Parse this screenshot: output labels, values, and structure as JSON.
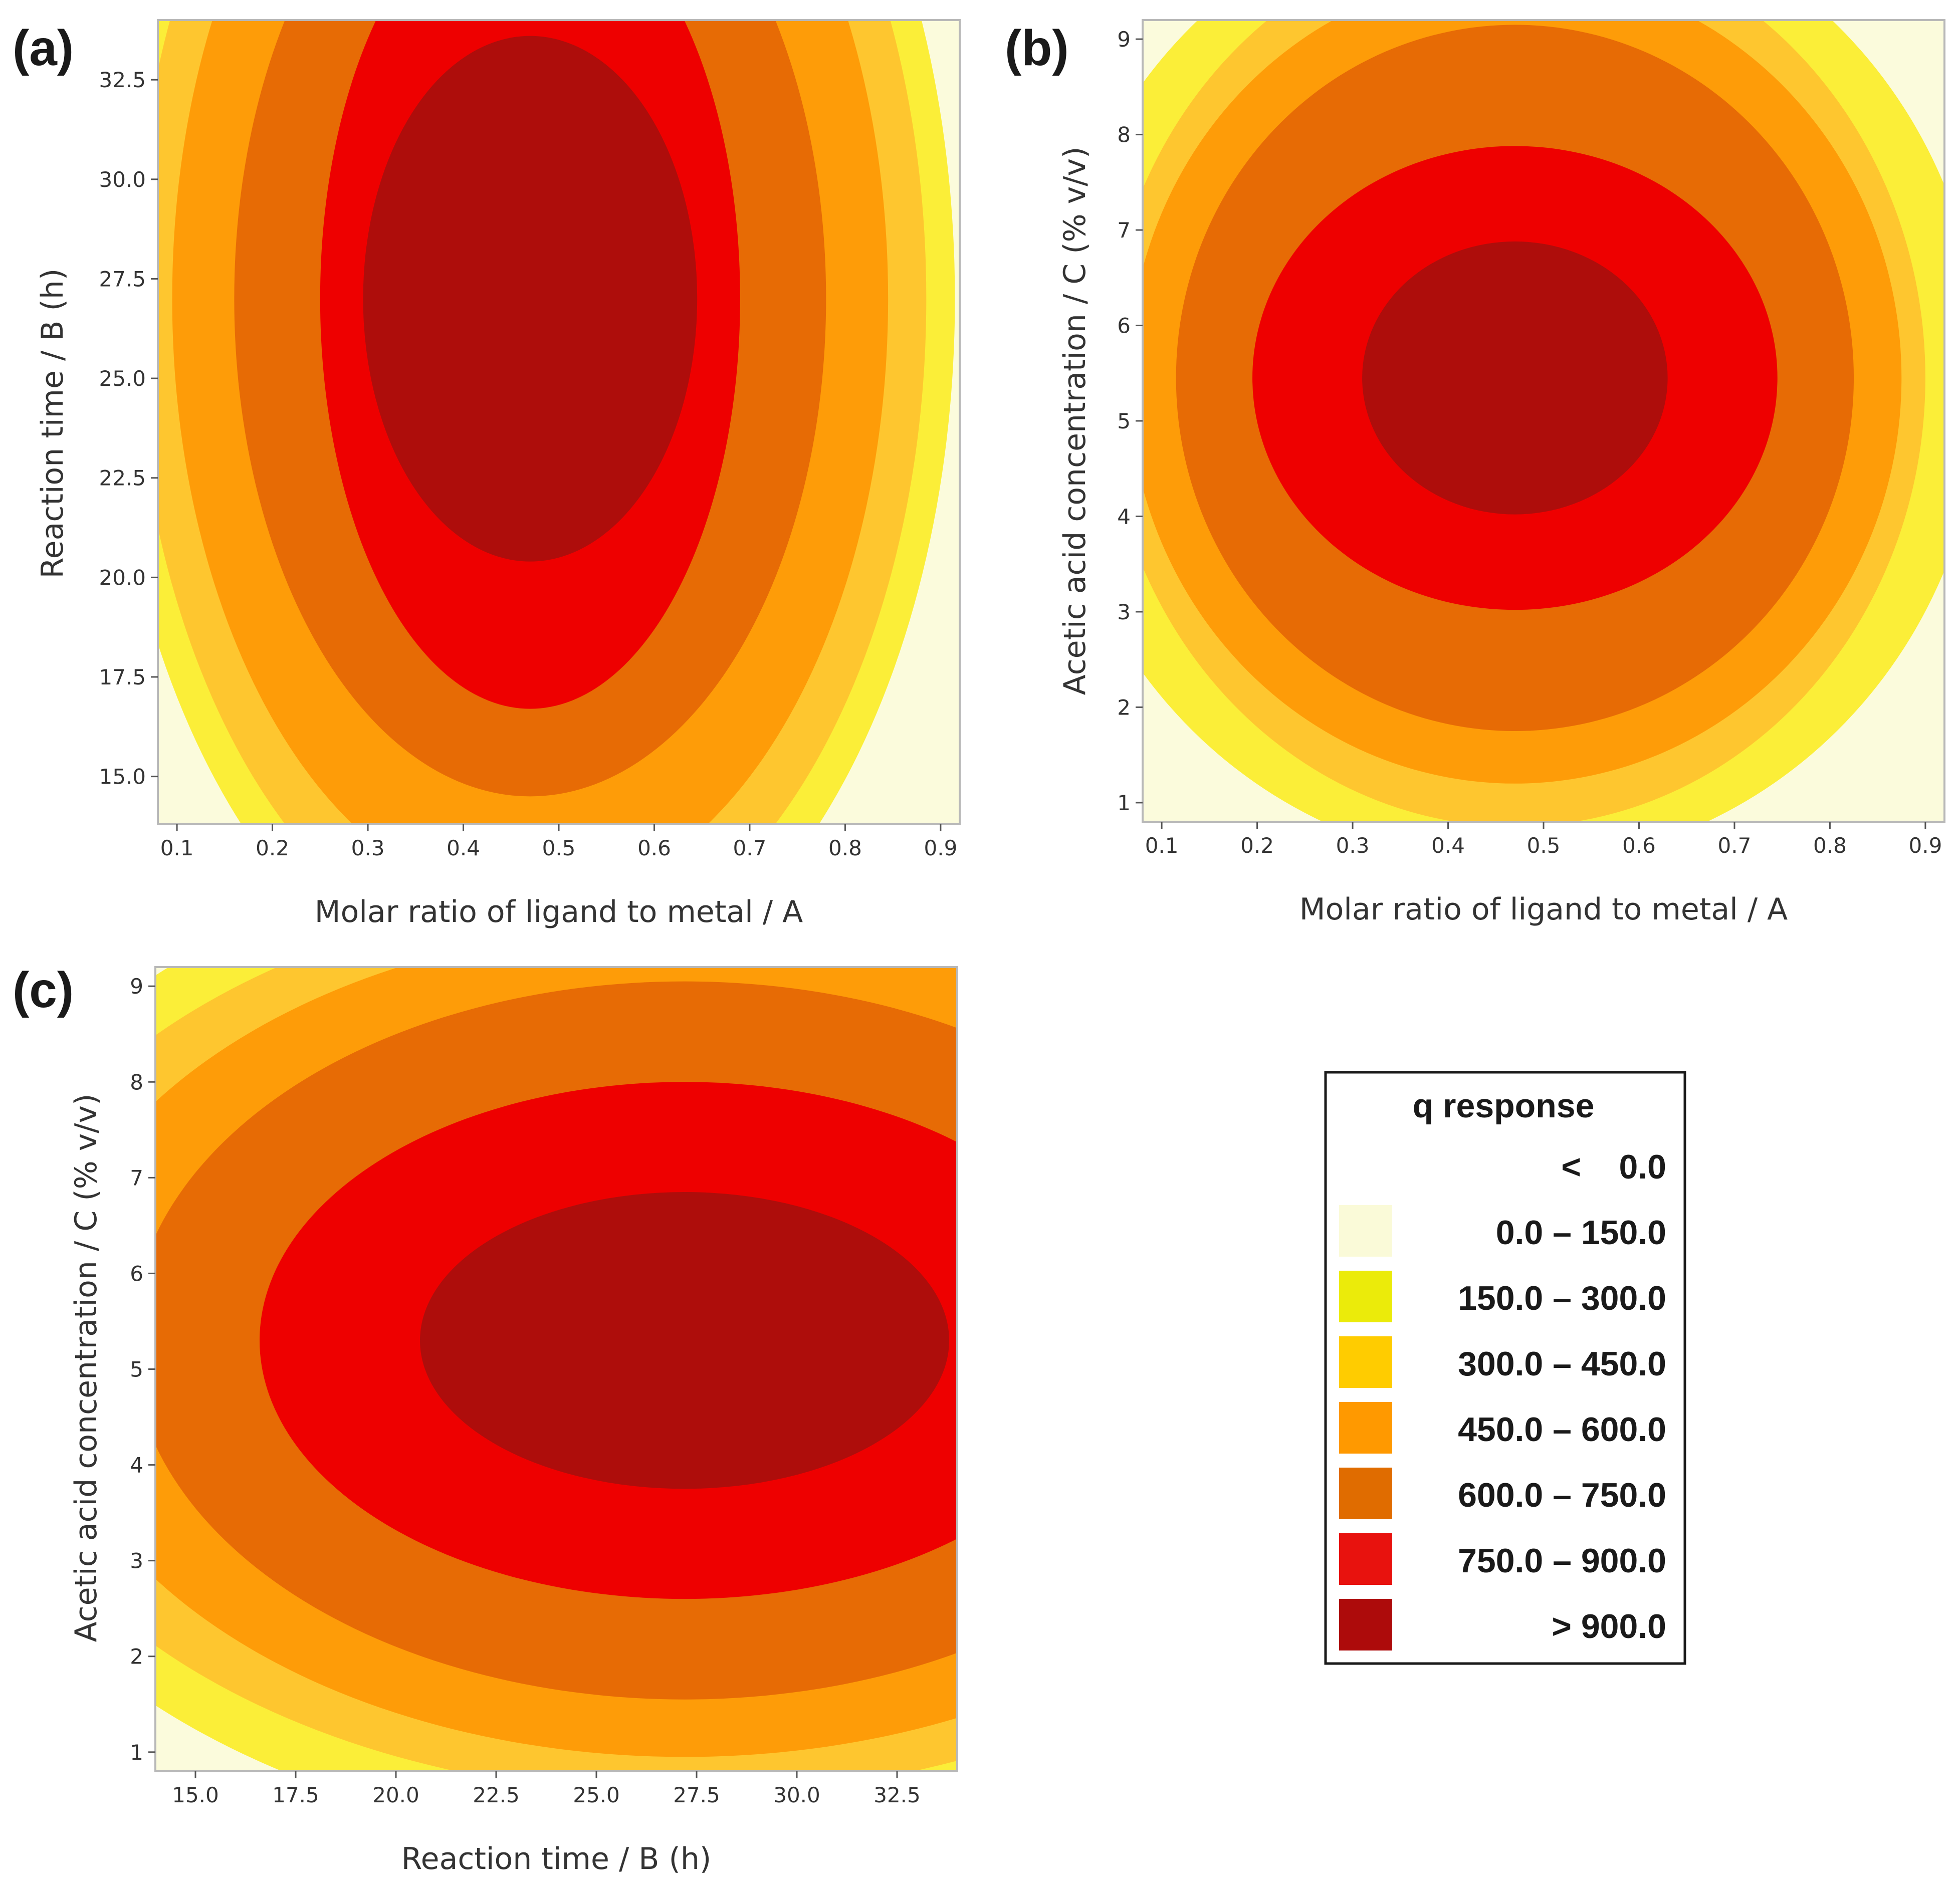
{
  "chart_data": [
    {
      "type": "contour",
      "panel_label": "(a)",
      "xlabel": "Molar ratio of ligand to metal / A",
      "ylabel": "Reaction time / B (h)",
      "xlim": [
        0.08,
        0.92
      ],
      "ylim": [
        13.8,
        34.0
      ],
      "x_ticks": [
        0.1,
        0.2,
        0.3,
        0.4,
        0.5,
        0.6,
        0.7,
        0.8,
        0.9
      ],
      "x_tick_labels": [
        "0.1",
        "0.2",
        "0.3",
        "0.4",
        "0.5",
        "0.6",
        "0.7",
        "0.8",
        "0.9"
      ],
      "y_ticks": [
        15.0,
        17.5,
        20.0,
        22.5,
        25.0,
        27.5,
        30.0,
        32.5
      ],
      "y_tick_labels": [
        "15.0",
        "17.5",
        "20.0",
        "22.5",
        "25.0",
        "27.5",
        "30.0",
        "32.5"
      ],
      "optimum": {
        "x": 0.47,
        "y": 27.0
      },
      "contour_semi_axes": [
        {
          "level": 150,
          "dx": 0.445,
          "dy": 18.0
        },
        {
          "level": 300,
          "dx": 0.415,
          "dy": 16.8
        },
        {
          "level": 450,
          "dx": 0.375,
          "dy": 15.2
        },
        {
          "level": 600,
          "dx": 0.31,
          "dy": 12.5
        },
        {
          "level": 750,
          "dx": 0.22,
          "dy": 10.3
        },
        {
          "level": 900,
          "dx": 0.175,
          "dy": 6.6
        }
      ]
    },
    {
      "type": "contour",
      "panel_label": "(b)",
      "xlabel": "Molar ratio of ligand to metal / A",
      "ylabel": "Acetic acid concentration / C (% v/v)",
      "xlim": [
        0.08,
        0.92
      ],
      "ylim": [
        0.8,
        9.2
      ],
      "x_ticks": [
        0.1,
        0.2,
        0.3,
        0.4,
        0.5,
        0.6,
        0.7,
        0.8,
        0.9
      ],
      "x_tick_labels": [
        "0.1",
        "0.2",
        "0.3",
        "0.4",
        "0.5",
        "0.6",
        "0.7",
        "0.8",
        "0.9"
      ],
      "y_ticks": [
        1,
        2,
        3,
        4,
        5,
        6,
        7,
        8,
        9
      ],
      "y_tick_labels": [
        "1",
        "2",
        "3",
        "4",
        "5",
        "6",
        "7",
        "8",
        "9"
      ],
      "optimum": {
        "x": 0.47,
        "y": 5.45
      },
      "contour_semi_axes": [
        {
          "level": 150,
          "dx": 0.49,
          "dy": 5.1
        },
        {
          "level": 300,
          "dx": 0.43,
          "dy": 4.7
        },
        {
          "level": 450,
          "dx": 0.405,
          "dy": 4.25
        },
        {
          "level": 600,
          "dx": 0.355,
          "dy": 3.7
        },
        {
          "level": 750,
          "dx": 0.275,
          "dy": 2.43
        },
        {
          "level": 900,
          "dx": 0.16,
          "dy": 1.43
        }
      ]
    },
    {
      "type": "contour",
      "panel_label": "(c)",
      "xlabel": "Reaction time / B (h)",
      "ylabel": "Acetic acid concentration / C (% v/v)",
      "xlim": [
        14.0,
        34.0
      ],
      "ylim": [
        0.8,
        9.2
      ],
      "x_ticks": [
        15.0,
        17.5,
        20.0,
        22.5,
        25.0,
        27.5,
        30.0,
        32.5
      ],
      "x_tick_labels": [
        "15.0",
        "17.5",
        "20.0",
        "22.5",
        "25.0",
        "27.5",
        "30.0",
        "32.5"
      ],
      "y_ticks": [
        1,
        2,
        3,
        4,
        5,
        6,
        7,
        8,
        9
      ],
      "y_tick_labels": [
        "1",
        "2",
        "3",
        "4",
        "5",
        "6",
        "7",
        "8",
        "9"
      ],
      "optimum": {
        "x": 27.2,
        "y": 5.3
      },
      "contour_semi_axes": [
        {
          "level": 150,
          "dx": 19.0,
          "dy": 5.3
        },
        {
          "level": 300,
          "dx": 17.8,
          "dy": 4.75
        },
        {
          "level": 450,
          "dx": 16.1,
          "dy": 4.35
        },
        {
          "level": 600,
          "dx": 13.8,
          "dy": 3.75
        },
        {
          "level": 750,
          "dx": 10.6,
          "dy": 2.7
        },
        {
          "level": 900,
          "dx": 6.6,
          "dy": 1.55
        }
      ]
    }
  ],
  "legend": {
    "title": "q response",
    "items": [
      {
        "label": "<    0.0",
        "color": null
      },
      {
        "label": "0.0 – 150.0",
        "color": "#fafad8"
      },
      {
        "label": "150.0 – 300.0",
        "color": "#ebeb0a"
      },
      {
        "label": "300.0 – 450.0",
        "color": "#ffcc00"
      },
      {
        "label": "450.0 – 600.0",
        "color": "#ff9900"
      },
      {
        "label": "600.0 – 750.0",
        "color": "#e06c00"
      },
      {
        "label": "750.0 – 900.0",
        "color": "#e8120e"
      },
      {
        "label": "> 900.0",
        "color": "#ad0b0b"
      }
    ]
  },
  "band_colors": [
    "#fbfbdc",
    "#fbee38",
    "#fec62f",
    "#fe9c08",
    "#e76b05",
    "#ee0000",
    "#ae0d0b"
  ]
}
